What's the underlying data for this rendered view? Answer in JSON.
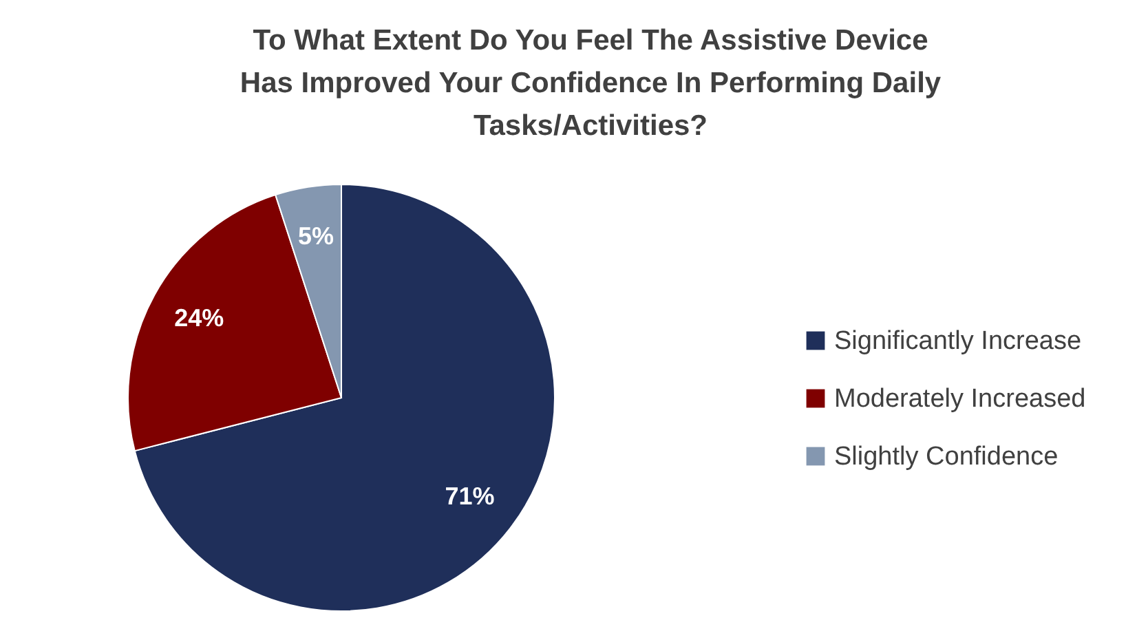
{
  "chart_data": {
    "type": "pie",
    "title": "To What Extent Do You Feel The Assistive Device Has Improved Your Confidence In Performing Daily Tasks/Activities?",
    "categories": [
      "Significantly Increase",
      "Moderately Increased",
      "Slightly Confidence"
    ],
    "values": [
      71,
      24,
      5
    ],
    "colors": [
      "#1f2f5a",
      "#7f0000",
      "#8497b0"
    ],
    "value_labels": [
      "71%",
      "24%",
      "5%"
    ],
    "legend": "right"
  }
}
